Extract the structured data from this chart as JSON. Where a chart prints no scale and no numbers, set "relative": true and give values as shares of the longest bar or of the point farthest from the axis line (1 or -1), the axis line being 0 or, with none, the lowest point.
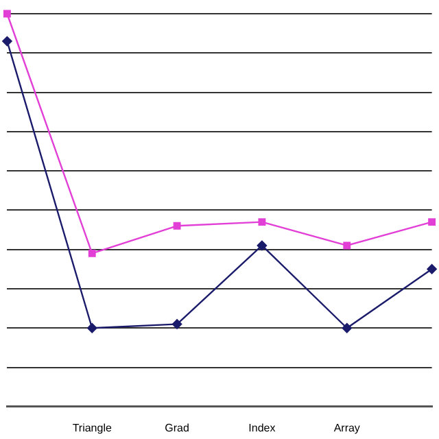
{
  "chart_data": {
    "type": "line",
    "relative": true,
    "grid": "y",
    "legend": false,
    "categories": [
      null,
      "Triangle",
      "Grad",
      "Index",
      "Array",
      null
    ],
    "series": [
      {
        "color": "#e23fd6",
        "marker": "square",
        "values": [
          1,
          0.39,
          0.46,
          0.47,
          0.41,
          0.47
        ]
      },
      {
        "color": "#1b1b6b",
        "marker": "diamond",
        "values": [
          0.93,
          0.2,
          0.21,
          0.41,
          0.2,
          0.35
        ]
      }
    ]
  }
}
